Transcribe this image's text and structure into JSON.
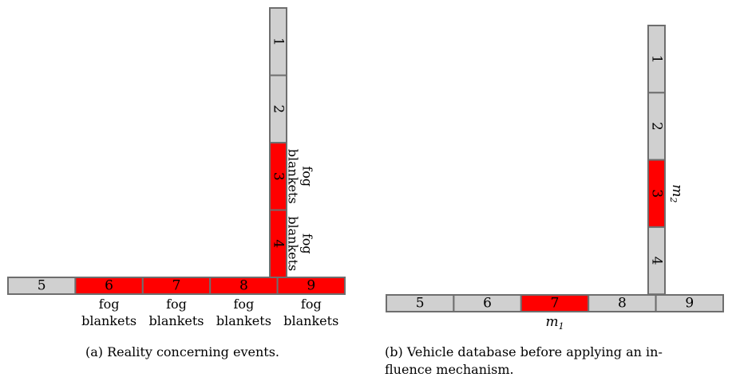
{
  "colors": {
    "normal": "#d0d0d0",
    "event": "#ff0000",
    "border": "#6e6e6e"
  },
  "panel_a": {
    "caption": "(a) Reality concerning events.",
    "vertical_segments": [
      {
        "id": "1",
        "event": false
      },
      {
        "id": "2",
        "event": false
      },
      {
        "id": "3",
        "event": true
      },
      {
        "id": "4",
        "event": true
      }
    ],
    "horizontal_segments": [
      {
        "id": "5",
        "event": false
      },
      {
        "id": "6",
        "event": true
      },
      {
        "id": "7",
        "event": true
      },
      {
        "id": "8",
        "event": true
      },
      {
        "id": "9",
        "event": true
      }
    ],
    "annotations": {
      "vertical": [
        {
          "segment": "3",
          "line1": "fog",
          "line2": "blankets"
        },
        {
          "segment": "4",
          "line1": "fog",
          "line2": "blankets"
        }
      ],
      "horizontal": [
        {
          "segment": "6",
          "line1": "fog",
          "line2": "blankets"
        },
        {
          "segment": "7",
          "line1": "fog",
          "line2": "blankets"
        },
        {
          "segment": "8",
          "line1": "fog",
          "line2": "blankets"
        },
        {
          "segment": "9",
          "line1": "fog",
          "line2": "blankets"
        }
      ]
    }
  },
  "panel_b": {
    "caption_line1": "(b) Vehicle database before applying an in-",
    "caption_line2": "fluence mechanism.",
    "vertical_segments": [
      {
        "id": "1",
        "event": false
      },
      {
        "id": "2",
        "event": false
      },
      {
        "id": "3",
        "event": true
      },
      {
        "id": "4",
        "event": false
      }
    ],
    "horizontal_segments": [
      {
        "id": "5",
        "event": false
      },
      {
        "id": "6",
        "event": false
      },
      {
        "id": "7",
        "event": true
      },
      {
        "id": "8",
        "event": false
      },
      {
        "id": "9",
        "event": false
      }
    ],
    "markers": [
      {
        "segment": "7",
        "base": "m",
        "sub": "1"
      },
      {
        "segment": "3",
        "base": "m",
        "sub": "2"
      }
    ]
  }
}
